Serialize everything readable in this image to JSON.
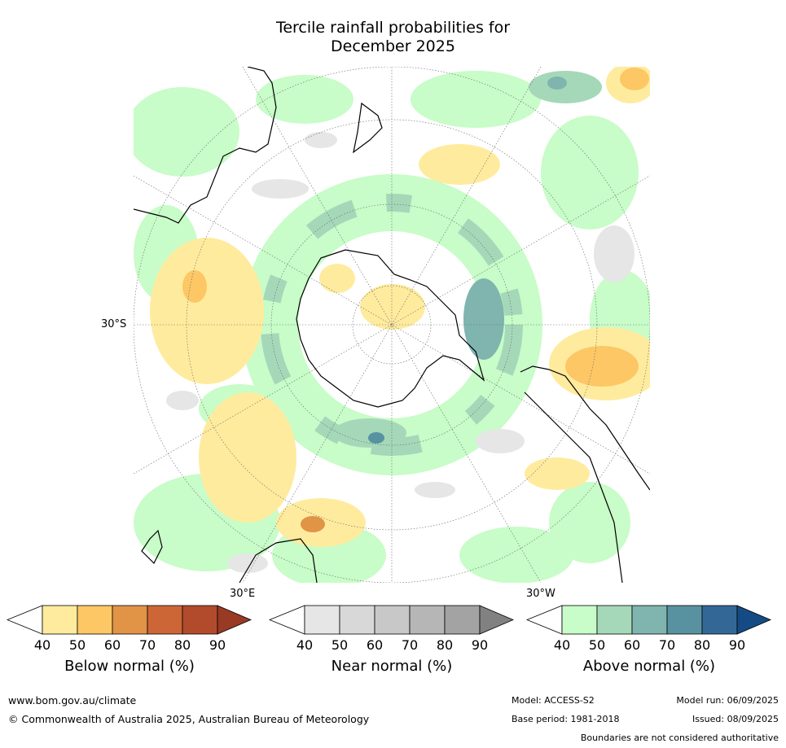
{
  "title": {
    "line1": "Tercile rainfall probabilities for",
    "line2": "December 2025"
  },
  "map": {
    "projection": "south-polar-stereographic",
    "labels": {
      "lat_30s": "30°S",
      "lon_30e": "30°E",
      "lon_30w": "30°W"
    }
  },
  "colorbars": [
    {
      "title": "Below normal (%)",
      "ticks": [
        "40",
        "50",
        "60",
        "70",
        "80",
        "90"
      ],
      "colors": [
        "#ffffff",
        "#ffeb9e",
        "#fdc765",
        "#e19346",
        "#cd6636",
        "#b24b2b",
        "#993a24"
      ]
    },
    {
      "title": "Near normal (%)",
      "ticks": [
        "40",
        "50",
        "60",
        "70",
        "80",
        "90"
      ],
      "colors": [
        "#ffffff",
        "#e6e6e6",
        "#d8d8d8",
        "#c8c8c8",
        "#b6b6b6",
        "#a3a3a3",
        "#818181"
      ]
    },
    {
      "title": "Above normal (%)",
      "ticks": [
        "40",
        "50",
        "60",
        "70",
        "80",
        "90"
      ],
      "colors": [
        "#ffffff",
        "#c8fcc8",
        "#a5d8b8",
        "#7fb5ae",
        "#5892a1",
        "#336896",
        "#154b84"
      ]
    }
  ],
  "footer": {
    "website": "www.bom.gov.au/climate",
    "copyright": "© Commonwealth of Australia 2025, Australian Bureau of Meteorology",
    "model": "Model: ACCESS-S2",
    "base_period": "Base period: 1981-2018",
    "model_run": "Model run: 06/09/2025",
    "issued": "Issued: 08/09/2025",
    "disclaimer": "Boundaries are not considered authoritative"
  }
}
